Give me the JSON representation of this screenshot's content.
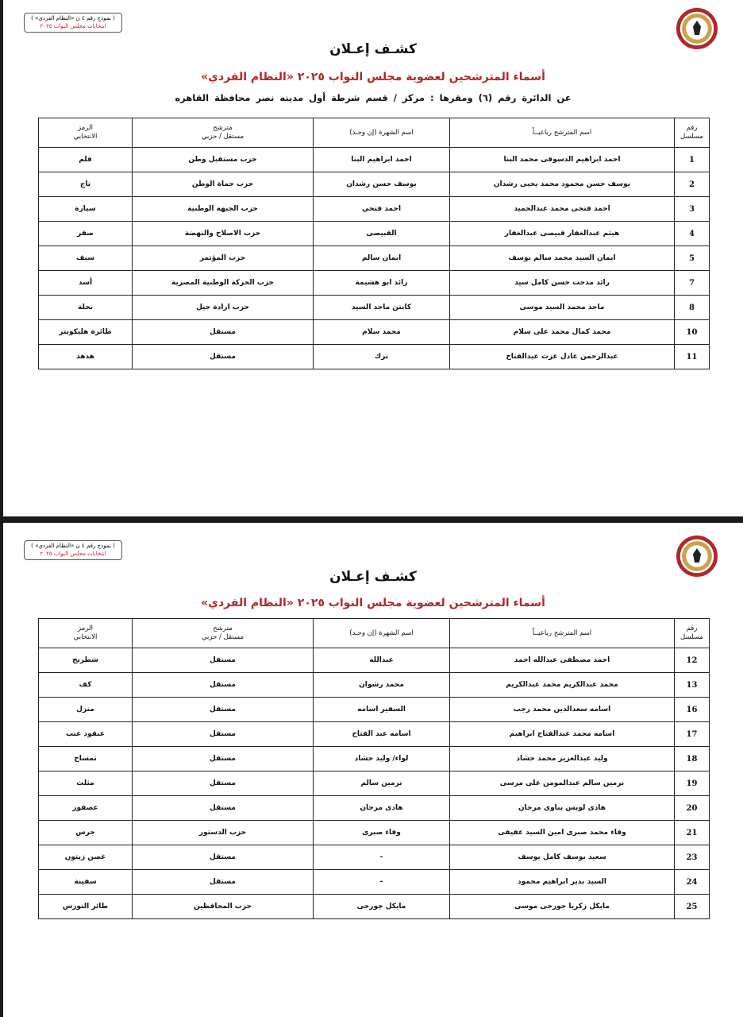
{
  "header": {
    "stamp_line1": "( نموذج رقم ٤ ن «النظام الفردي» )",
    "stamp_line2": "انتخابات مجلس النواب ٢٠٢٥",
    "title": "كشـف إعـلان",
    "subtitle": "أسماء المترشحين لعضوية مجلس النواب ٢٠٢٥ «النظام الفردي»",
    "district_line": "عن الدائرة رقم  (٦)   ومقرها : مركز / قسم شرطة  أول مدينه نصر   محافظة  القاهره",
    "accent_color": "#b3262b"
  },
  "columns": {
    "serial_1": "رقم",
    "serial_2": "مسلسل",
    "full_name": "اسم المترشح رباعيــاً",
    "known_as": "اسم الشهرة (إن وجـد)",
    "type_1": "مترشح",
    "type_2": "مستقل / حزبي",
    "symbol_1": "الرمز",
    "symbol_2": "الانتخابي"
  },
  "page1_rows": [
    {
      "num": "1",
      "name": "احمد ابراهيم الدسوقى محمد البنا",
      "known": "احمد ابراهيم البنا",
      "type": "حزب مستقبل وطن",
      "symbol": "قلم"
    },
    {
      "num": "2",
      "name": "يوسف حسن محمود محمد يحيى رشدان",
      "known": "يوسف حسن رشدان",
      "type": "حزب حماة الوطن",
      "symbol": "تاج"
    },
    {
      "num": "3",
      "name": "احمد فتحى محمد عبدالحميد",
      "known": "احمد فتحي",
      "type": "حزب الجبهة الوطنية",
      "symbol": "سيارة"
    },
    {
      "num": "4",
      "name": "هيثم عبدالغفار قبيصى عبدالغفار",
      "known": "القبيصى",
      "type": "حزب الاصلاح والنهضة",
      "symbol": "صقر"
    },
    {
      "num": "5",
      "name": "ايمان السيد محمد سالم يوسف",
      "known": "ايمان سالم",
      "type": "حزب المؤتمر",
      "symbol": "سيف"
    },
    {
      "num": "7",
      "name": "رائد مدحت حسن كامل سيد",
      "known": "رائد ابو هشيمة",
      "type": "حزب الحركة الوطنية المصرية",
      "symbol": "أسد"
    },
    {
      "num": "8",
      "name": "ماجد محمد السيد موسى",
      "known": "كابتن ماجد السيد",
      "type": "حزب ارادة جيل",
      "symbol": "نحلة"
    },
    {
      "num": "10",
      "name": "محمد كمال محمد على سلام",
      "known": "محمد سلام",
      "type": "مستقل",
      "symbol": "طائرة هليكوبتر"
    },
    {
      "num": "11",
      "name": "عبدالرحمن عادل عزت عبدالفتاح",
      "known": "ترك",
      "type": "مستقل",
      "symbol": "هدهد"
    }
  ],
  "page2_rows": [
    {
      "num": "12",
      "name": "احمد مصطفى عبدالله احمد",
      "known": "عبدالله",
      "type": "مستقل",
      "symbol": "شطرنج"
    },
    {
      "num": "13",
      "name": "محمد عبدالكريم محمد عبدالكريم",
      "known": "محمد رشوان",
      "type": "مستقل",
      "symbol": "كف"
    },
    {
      "num": "16",
      "name": "اسامه سعدالدين محمد رجب",
      "known": "السفير اسامه",
      "type": "مستقل",
      "symbol": "منزل"
    },
    {
      "num": "17",
      "name": "اسامه محمد عبدالفتاح ابراهيم",
      "known": "اسامه عبد الفتاح",
      "type": "مستقل",
      "symbol": "عنقود عنب"
    },
    {
      "num": "18",
      "name": "وليد عبدالعزيز محمد حشاد",
      "known": "لواء/ وليد حشاد",
      "type": "مستقل",
      "symbol": "تمساح"
    },
    {
      "num": "19",
      "name": "نرمين سالم عبدالمومن على مرسى",
      "known": "نرمين سالم",
      "type": "مستقل",
      "symbol": "مثلث"
    },
    {
      "num": "20",
      "name": "هادى لويس بباوى مرجان",
      "known": "هادى مرجان",
      "type": "مستقل",
      "symbol": "عصفور"
    },
    {
      "num": "21",
      "name": "وفاء محمد صبرى امين السيد عفيفى",
      "known": "وفاء صبرى",
      "type": "حزب الدستور",
      "symbol": "جرس"
    },
    {
      "num": "23",
      "name": "سعيد يوسف كامل يوسف",
      "known": "-",
      "type": "مستقل",
      "symbol": "غصن زيتون"
    },
    {
      "num": "24",
      "name": "السيد بدير ابراهيم محمود",
      "known": "-",
      "type": "مستقل",
      "symbol": "سفينة"
    },
    {
      "num": "25",
      "name": "مايكل زكريا جورجى موسى",
      "known": "مايكل جورجى",
      "type": "حزب المحافظين",
      "symbol": "طائر النورس"
    }
  ]
}
